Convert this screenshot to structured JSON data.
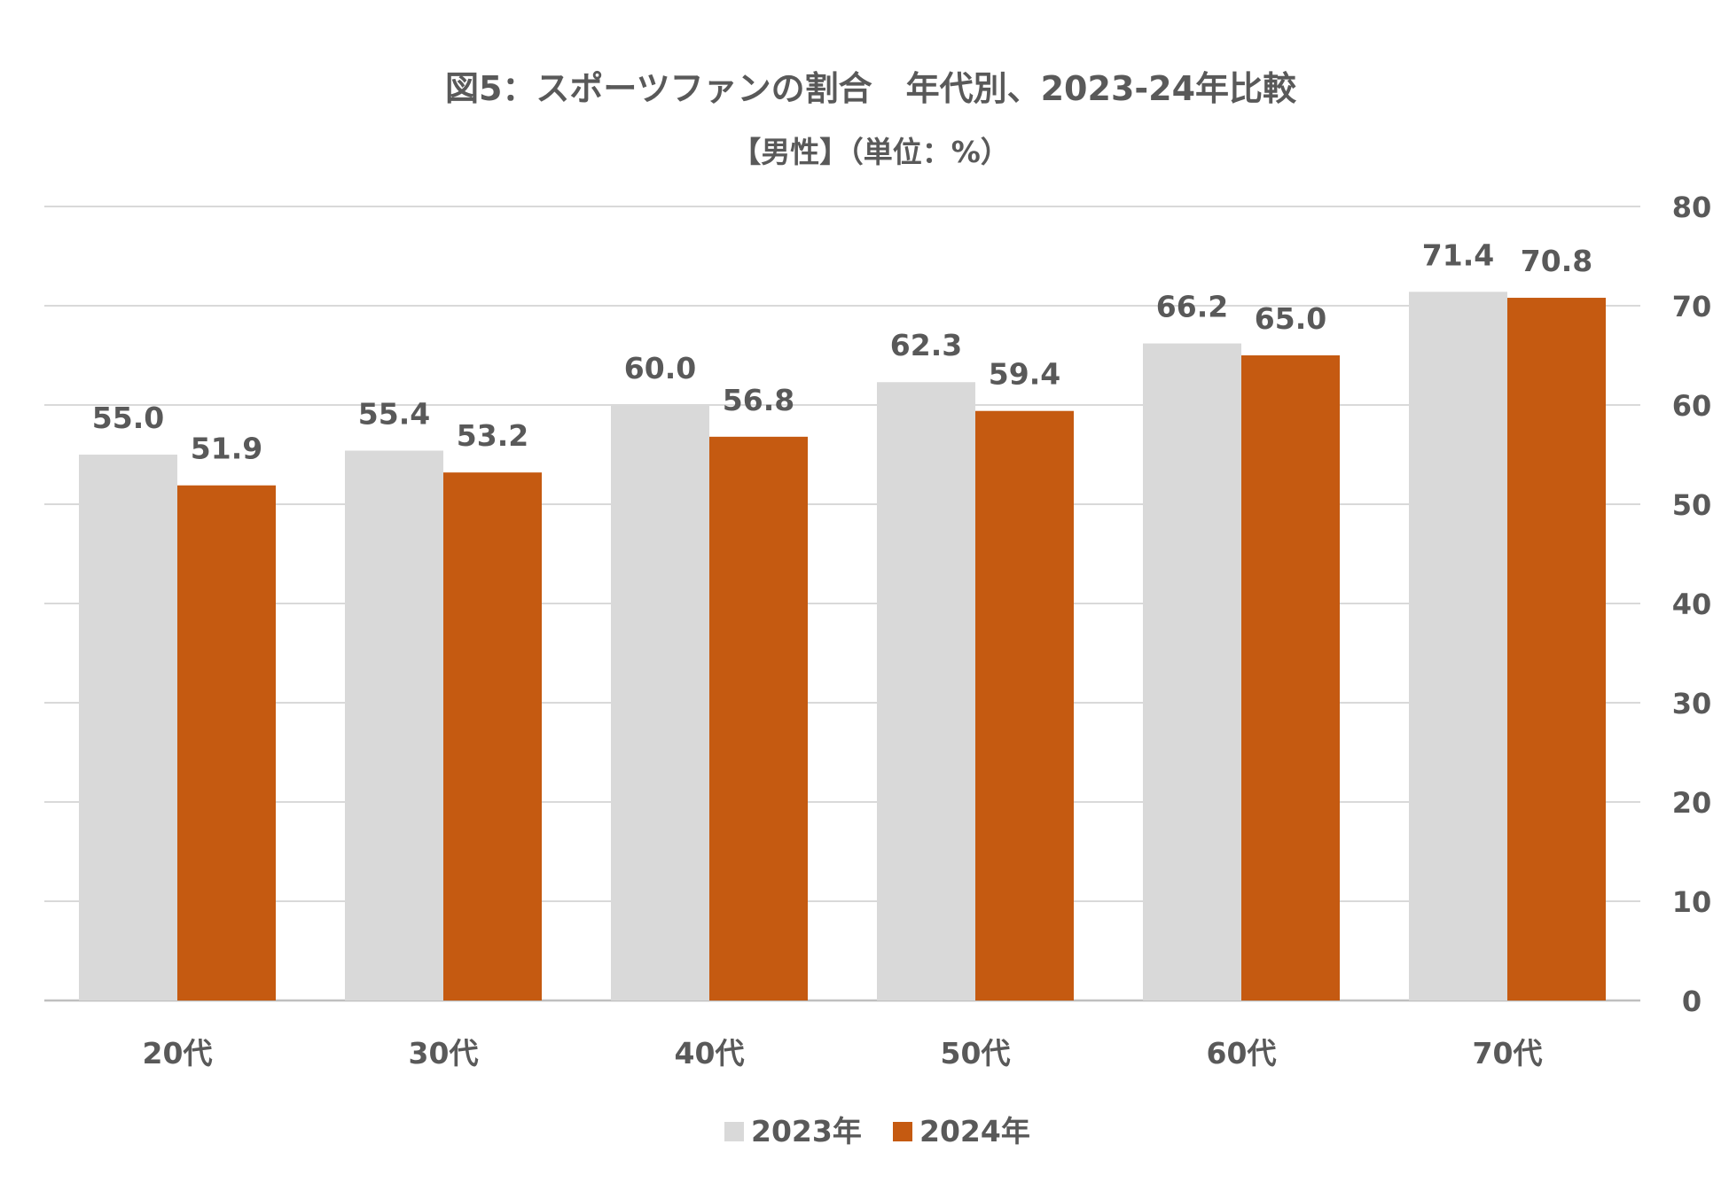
{
  "chart_data": {
    "type": "bar",
    "title": "図5：スポーツファンの割合　年代別、2023-24年比較",
    "subtitle": "【男性】（単位：%）",
    "categories": [
      "20代",
      "30代",
      "40代",
      "50代",
      "60代",
      "70代"
    ],
    "series": [
      {
        "name": "2023年",
        "values": [
          55.0,
          55.4,
          60.0,
          62.3,
          66.2,
          71.4
        ],
        "labels": [
          "55.0",
          "55.4",
          "60.0",
          "62.3",
          "66.2",
          "71.4"
        ],
        "color": "#d9d9d9"
      },
      {
        "name": "2024年",
        "values": [
          51.9,
          53.2,
          56.8,
          59.4,
          65.0,
          70.8
        ],
        "labels": [
          "51.9",
          "53.2",
          "56.8",
          "59.4",
          "65.0",
          "70.8"
        ],
        "color": "#c55a11"
      }
    ],
    "ylim": [
      0,
      80
    ],
    "yticks": [
      "0",
      "10",
      "20",
      "30",
      "40",
      "50",
      "60",
      "70",
      "80"
    ],
    "y_axis_side": "right",
    "grid": true,
    "gridline_color": "#d9d9d9",
    "text_color": "#595959",
    "legend_position": "bottom",
    "xlabel": "",
    "ylabel": ""
  }
}
